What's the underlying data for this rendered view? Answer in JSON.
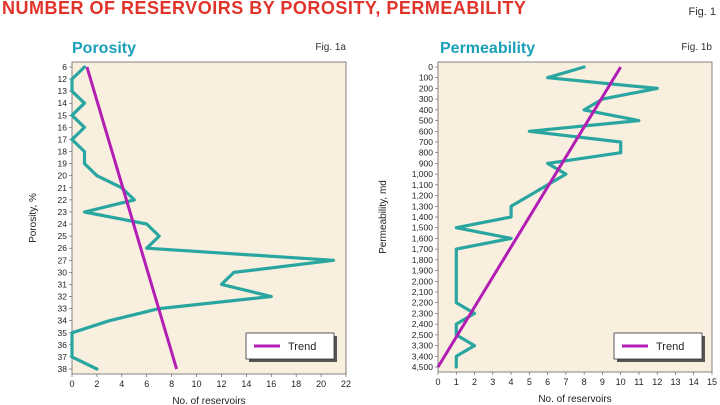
{
  "page": {
    "title": "NUMBER OF RESERVOIRS BY POROSITY, PERMEABILITY",
    "fig_label": "Fig. 1"
  },
  "colors": {
    "title": "#e0342b",
    "panel_title": "#1aa0b8",
    "plot_bg": "#f8efdf",
    "series": "#2aa6a0",
    "trend": "#b21db3"
  },
  "chart_data": [
    {
      "type": "line",
      "orientation": "horizontal",
      "title": "Porosity",
      "fig": "Fig. 1a",
      "ylabel": "Porosity, %",
      "xlabel": "No. of reservoirs",
      "categories": [
        "6",
        "12",
        "13",
        "14",
        "15",
        "16",
        "17",
        "18",
        "19",
        "20",
        "21",
        "22",
        "23",
        "24",
        "25",
        "26",
        "27",
        "30",
        "31",
        "32",
        "33",
        "34",
        "35",
        "36",
        "37",
        "38"
      ],
      "xlim": [
        0,
        22
      ],
      "xticks": [
        0,
        2,
        4,
        6,
        8,
        10,
        12,
        14,
        16,
        18,
        20,
        22
      ],
      "grid": false,
      "legend": "bottom-right",
      "series": [
        {
          "role": "data",
          "values": [
            1,
            0,
            0,
            1,
            0,
            1,
            0,
            1,
            1,
            2,
            4,
            5,
            1,
            6,
            7,
            6,
            21,
            13,
            12,
            16,
            7,
            3,
            0,
            0,
            0,
            2
          ]
        },
        {
          "name": "Trend",
          "role": "trend",
          "start": 1.2,
          "end": 8.4
        }
      ]
    },
    {
      "type": "line",
      "orientation": "horizontal",
      "title": "Permeability",
      "fig": "Fig. 1b",
      "ylabel": "Permeability, md",
      "xlabel": "No. of reservoirs",
      "categories": [
        "0",
        "100",
        "200",
        "300",
        "400",
        "500",
        "600",
        "700",
        "800",
        "900",
        "1,000",
        "1,100",
        "1,200",
        "1,300",
        "1,400",
        "1,500",
        "1,600",
        "1,700",
        "1,800",
        "1,900",
        "2,000",
        "2,100",
        "2,200",
        "2,300",
        "2,400",
        "2,500",
        "3,300",
        "3,400",
        "4,500"
      ],
      "xlim": [
        0,
        15
      ],
      "xticks": [
        0,
        1,
        2,
        3,
        4,
        5,
        6,
        7,
        8,
        9,
        10,
        11,
        12,
        13,
        14,
        15
      ],
      "grid": false,
      "legend": "bottom-right",
      "series": [
        {
          "role": "data",
          "values": [
            8,
            6,
            12,
            9,
            8,
            11,
            5,
            10,
            10,
            6,
            7,
            6,
            5,
            4,
            4,
            1,
            4,
            1,
            1,
            1,
            1,
            1,
            1,
            2,
            1,
            1,
            2,
            1,
            1
          ]
        },
        {
          "name": "Trend",
          "role": "trend",
          "start": 10,
          "end": 0
        }
      ]
    }
  ]
}
